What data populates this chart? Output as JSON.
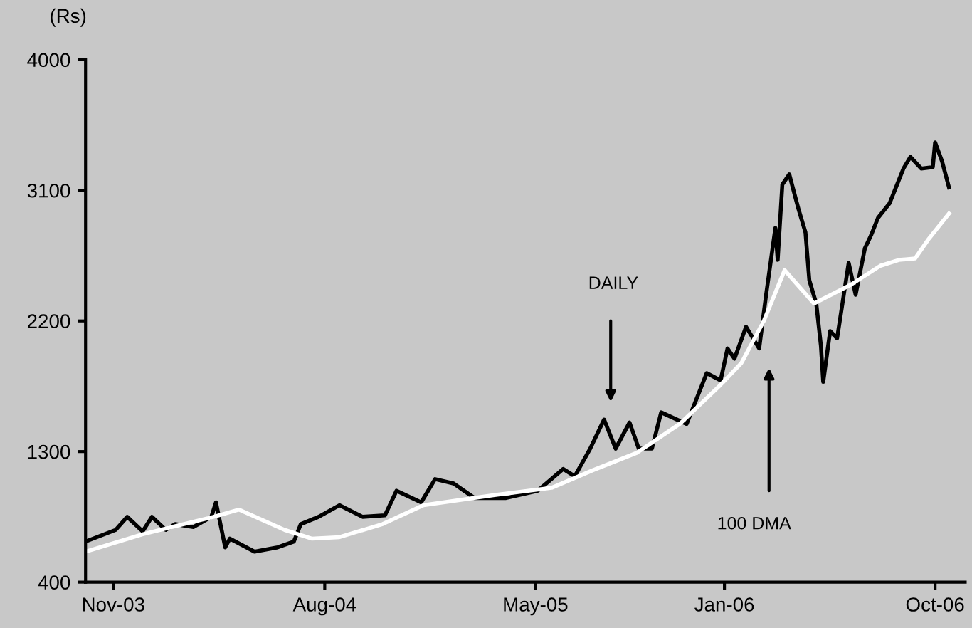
{
  "chart_data": {
    "type": "line",
    "ylabel": "(Rs)",
    "xlim": [
      "2003-09-26",
      "2006-11-09"
    ],
    "xticks": [
      {
        "value": "2003-11-01",
        "label": "Nov-03"
      },
      {
        "value": "2004-08-01",
        "label": "Aug-04"
      },
      {
        "value": "2005-05-01",
        "label": "May-05"
      },
      {
        "value": "2006-01-01",
        "label": "Jan-06"
      },
      {
        "value": "2006-10-01",
        "label": "Oct-06"
      }
    ],
    "ylim": [
      400,
      4000
    ],
    "yticks": [
      400,
      1300,
      2200,
      3100,
      4000
    ],
    "grid": false,
    "legend": false,
    "marker": "none",
    "line_style": "solid",
    "series": [
      {
        "color": "#000000",
        "x": [
          "2003-09-26",
          "2003-11-04",
          "2003-11-19",
          "2003-12-09",
          "2003-12-21",
          "2004-01-08",
          "2004-01-20",
          "2004-02-13",
          "2004-03-07",
          "2004-03-13",
          "2004-03-25",
          "2004-03-31",
          "2004-05-02",
          "2004-06-01",
          "2004-06-22",
          "2004-07-01",
          "2004-07-24",
          "2004-08-20",
          "2004-09-19",
          "2004-10-18",
          "2004-11-02",
          "2004-12-04",
          "2004-12-22",
          "2005-01-15",
          "2005-02-11",
          "2005-03-24",
          "2005-05-04",
          "2005-06-06",
          "2005-06-21",
          "2005-07-11",
          "2005-07-29",
          "2005-08-13",
          "2005-08-31",
          "2005-09-12",
          "2005-09-29",
          "2005-10-11",
          "2005-11-13",
          "2005-12-09",
          "2005-12-27",
          "2006-01-05",
          "2006-01-14",
          "2006-01-29",
          "2006-02-15",
          "2006-02-24",
          "2006-03-08",
          "2006-03-11",
          "2006-03-17",
          "2006-03-26",
          "2006-04-07",
          "2006-04-16",
          "2006-04-21",
          "2006-04-30",
          "2006-05-06",
          "2006-05-09",
          "2006-05-18",
          "2006-05-27",
          "2006-06-11",
          "2006-06-20",
          "2006-07-02",
          "2006-07-10",
          "2006-07-19",
          "2006-08-03",
          "2006-08-21",
          "2006-08-30",
          "2006-09-13",
          "2006-09-28",
          "2006-10-01",
          "2006-10-10",
          "2006-10-19"
        ],
        "values": [
          680,
          760,
          850,
          750,
          850,
          760,
          800,
          780,
          850,
          950,
          640,
          700,
          610,
          640,
          680,
          800,
          850,
          930,
          850,
          860,
          1030,
          950,
          1110,
          1080,
          980,
          980,
          1030,
          1180,
          1130,
          1320,
          1520,
          1320,
          1500,
          1320,
          1320,
          1570,
          1490,
          1840,
          1790,
          2010,
          1940,
          2160,
          2010,
          2380,
          2840,
          2620,
          3140,
          3210,
          2970,
          2810,
          2480,
          2320,
          2030,
          1780,
          2130,
          2080,
          2600,
          2380,
          2700,
          2790,
          2910,
          3010,
          3250,
          3330,
          3250,
          3260,
          3430,
          3300,
          3120
        ]
      },
      {
        "color": "#ffffff",
        "x": [
          "2003-09-26",
          "2003-12-09",
          "2004-03-10",
          "2004-04-12",
          "2004-06-10",
          "2004-07-15",
          "2004-08-20",
          "2004-10-15",
          "2004-12-07",
          "2005-03-09",
          "2005-05-22",
          "2005-07-14",
          "2005-09-09",
          "2005-11-04",
          "2005-12-27",
          "2006-01-23",
          "2006-02-21",
          "2006-03-20",
          "2006-04-27",
          "2006-06-14",
          "2006-07-22",
          "2006-08-15",
          "2006-09-05",
          "2006-09-22",
          "2006-10-19"
        ],
        "values": [
          610,
          730,
          850,
          900,
          760,
          700,
          710,
          800,
          930,
          1000,
          1050,
          1170,
          1290,
          1490,
          1760,
          1910,
          2200,
          2550,
          2320,
          2450,
          2580,
          2620,
          2630,
          2760,
          2940
        ]
      }
    ],
    "annotations": [
      "DAILY",
      "100 DMA"
    ]
  }
}
